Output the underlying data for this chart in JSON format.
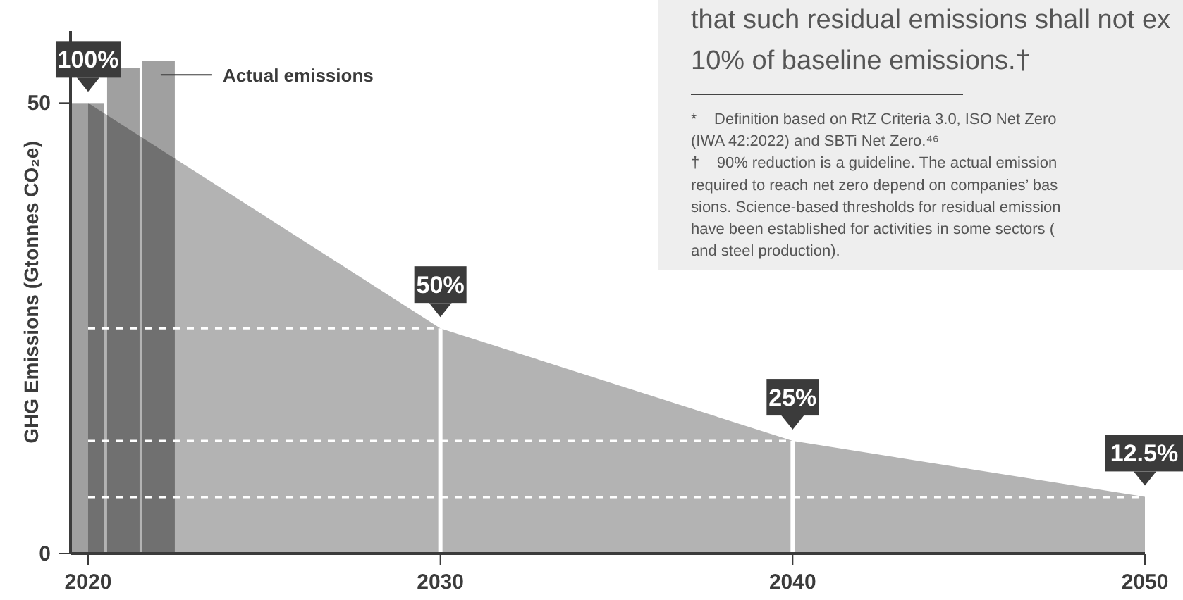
{
  "chart_data": {
    "type": "area",
    "ylabel": "GHG Emissions (Gtonnes CO₂e)",
    "xlim": [
      2019.5,
      2050
    ],
    "xticks": [
      2020,
      2030,
      2040,
      2050
    ],
    "ylim": [
      0,
      58
    ],
    "yticks": [
      0,
      50
    ],
    "grid": false,
    "series": [
      {
        "color": "#b3b3b3",
        "x": [
          2020,
          2030,
          2040,
          2050
        ],
        "values": [
          50,
          25,
          12.5,
          6.3
        ]
      },
      {
        "type": "bar",
        "name": "Actual emissions",
        "color": "#a0a0a0",
        "x": [
          2020,
          2021,
          2022
        ],
        "values": [
          50,
          53.9,
          54.7
        ]
      }
    ],
    "ref_lines": [
      {
        "axis": "y",
        "value": 25,
        "color": "#ffffff",
        "line_style": "dashed"
      },
      {
        "axis": "y",
        "value": 12.5,
        "color": "#ffffff",
        "line_style": "dashed"
      },
      {
        "axis": "y",
        "value": 6.25,
        "color": "#ffffff",
        "line_style": "dashed"
      },
      {
        "axis": "x",
        "value": 2030,
        "color": "#ffffff",
        "line_style": "solid"
      },
      {
        "axis": "x",
        "value": 2040,
        "color": "#ffffff",
        "line_style": "solid"
      }
    ],
    "annotations": [
      {
        "text": "100%",
        "x": 2020,
        "y": 50
      },
      {
        "text": "50%",
        "x": 2030,
        "y": 25
      },
      {
        "text": "25%",
        "x": 2040,
        "y": 12.5
      },
      {
        "text": "12.5%",
        "x": 2050,
        "y": 6.3
      },
      "that such residual emissions shall not ex",
      "10% of baseline emissions.†",
      "*    Definition based on RtZ Criteria 3.0, ISO Net Zero",
      "(IWA 42:2022) and SBTi Net Zero.⁴⁶",
      "†    90% reduction is a guideline. The actual emission",
      "required to reach net zero depend on companies’ bas",
      "sions. Science-based thresholds for residual emission",
      "have been established for activities in some sectors (",
      "and steel production)."
    ]
  }
}
